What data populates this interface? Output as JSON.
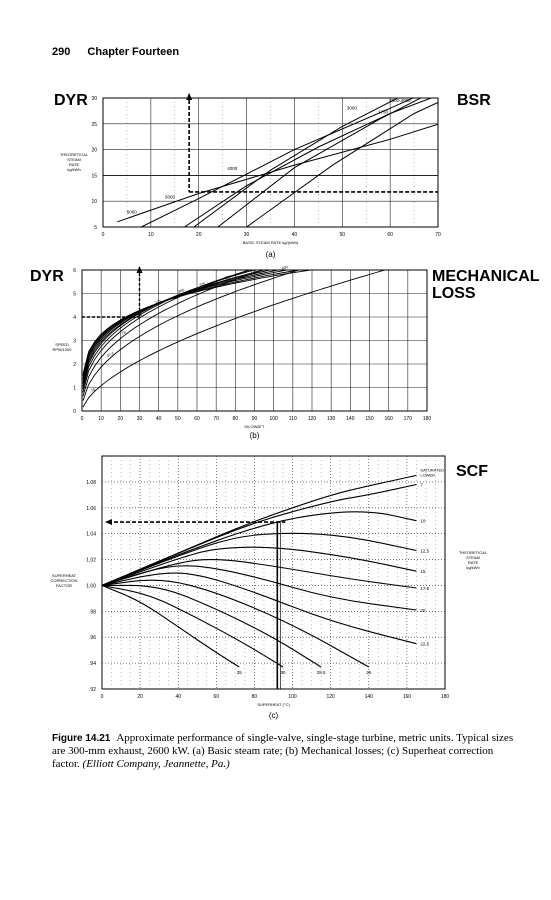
{
  "page": {
    "number": "290",
    "chapter": "Chapter Fourteen"
  },
  "tags": {
    "a_left": "DYR",
    "a_right": "BSR",
    "b_left": "DYR",
    "b_right_1": "MECHANICAL",
    "b_right_2": "LOSS",
    "c_right": "SCF"
  },
  "caption": {
    "label": "Figure 14.21",
    "text": "Approximate performance of single-valve, single-stage turbine, metric units. Typical sizes are 300-mm exhaust, 2600 kW. (a) Basic steam rate; (b) Mechanical losses; (c) Superheat correction factor.",
    "source": "(Elliott Company, Jeannette, Pa.)"
  },
  "chart_data": [
    {
      "type": "line",
      "panel": "(a)",
      "xlabel": "BASIC STEAM RATE kg/(kWh)",
      "ylabel": "THEORETICAL STEAM RATE kg/kWh",
      "xlim": [
        0,
        70
      ],
      "ylim": [
        5,
        30
      ],
      "xticks": [
        "0",
        "10",
        "20",
        "30",
        "40",
        "50",
        "60",
        "70"
      ],
      "yticks": [
        "5",
        "10",
        "15",
        "20",
        "25",
        "30"
      ],
      "series": [
        {
          "name": "6000",
          "points": [
            [
              3,
              6
            ],
            [
              20,
              11.5
            ],
            [
              40,
              17
            ],
            [
              60,
              22
            ],
            [
              72,
              25.5
            ]
          ]
        },
        {
          "name": "5000",
          "points": [
            [
              8,
              5
            ],
            [
              20,
              10.5
            ],
            [
              40,
              20
            ],
            [
              60,
              28
            ],
            [
              66,
              30.5
            ]
          ]
        },
        {
          "name": "4000",
          "points": [
            [
              17,
              5
            ],
            [
              30,
              13
            ],
            [
              45,
              20.5
            ],
            [
              60,
              27
            ],
            [
              70,
              30.5
            ]
          ]
        },
        {
          "name": "3000",
          "points": [
            [
              19,
              5
            ],
            [
              35,
              16
            ],
            [
              50,
              24.5
            ],
            [
              62,
              30.2
            ]
          ]
        },
        {
          "name": "1750",
          "points": [
            [
              24,
              5
            ],
            [
              40,
              16.5
            ],
            [
              58,
              26
            ],
            [
              67,
              30.3
            ]
          ]
        },
        {
          "name": "2000-4000",
          "points": [
            [
              30,
              5
            ],
            [
              48,
              17
            ],
            [
              65,
              27
            ],
            [
              72,
              30
            ]
          ]
        }
      ],
      "guide_lines": {
        "dashed_vertical_x": 18,
        "dashed_horizontal_y": 11.8,
        "solid_horizontal_y": 15
      }
    },
    {
      "type": "line",
      "panel": "(b)",
      "xlabel": "KILOWATT",
      "ylabel": "SPEED RPM/1000",
      "xlim": [
        0,
        180
      ],
      "ylim": [
        0,
        6
      ],
      "xticks": [
        "0",
        "10",
        "20",
        "30",
        "40",
        "50",
        "60",
        "70",
        "80",
        "90",
        "100",
        "110",
        "120",
        "130",
        "140",
        "150",
        "160",
        "170",
        "180"
      ],
      "yticks": [
        "0",
        "1",
        "2",
        "3",
        "4",
        "5",
        "6"
      ],
      "series": [
        {
          "name": "15",
          "k": 0.26,
          "exp": 0.62
        },
        {
          "name": "37.5",
          "k": 0.62,
          "exp": 0.48
        },
        {
          "name": "75",
          "k": 0.85,
          "exp": 0.43
        },
        {
          "name": "150",
          "k": 1.05,
          "exp": 0.39
        },
        {
          "name": "225",
          "k": 1.2,
          "exp": 0.36
        },
        {
          "name": "300",
          "k": 1.33,
          "exp": 0.335
        },
        {
          "name": "375",
          "k": 1.43,
          "exp": 0.315
        },
        {
          "name": "450",
          "k": 1.53,
          "exp": 0.298
        },
        {
          "name": "525",
          "k": 1.62,
          "exp": 0.283
        },
        {
          "name": "600",
          "k": 1.7,
          "exp": 0.27
        },
        {
          "name": "675",
          "k": 1.78,
          "exp": 0.257
        },
        {
          "name": "750",
          "k": 1.86,
          "exp": 0.245
        }
      ],
      "guide_lines": {
        "dashed_vertical_x": 30,
        "dashed_horizontal_y": 4
      }
    },
    {
      "type": "line",
      "panel": "(c)",
      "xlabel": "SUPERHEAT (°C)",
      "ylabel": "SUPERHEAT CORRECTION FACTOR",
      "y2label": "THEORETICAL STEAM RATE kg/kWh",
      "xlim": [
        0,
        180
      ],
      "ylim": [
        0.92,
        1.1
      ],
      "xticks": [
        "0",
        "20",
        "40",
        "60",
        "80",
        "100",
        "120",
        "140",
        "160",
        "180"
      ],
      "yticks": [
        ".92",
        ".94",
        ".96",
        ".98",
        "1.00",
        "1.02",
        "1.04",
        "1.06",
        "1.08",
        ""
      ],
      "series": [
        {
          "name": "SATURATED LOWER",
          "points": [
            [
              0,
              1.0
            ],
            [
              40,
              1.025
            ],
            [
              80,
              1.05
            ],
            [
              120,
              1.07
            ],
            [
              140,
              1.077
            ],
            [
              165,
              1.085
            ]
          ]
        },
        {
          "name": "7",
          "points": [
            [
              0,
              1.0
            ],
            [
              40,
              1.025
            ],
            [
              80,
              1.049
            ],
            [
              120,
              1.065
            ],
            [
              140,
              1.07
            ],
            [
              165,
              1.078
            ]
          ]
        },
        {
          "name": "10",
          "points": [
            [
              0,
              1.0
            ],
            [
              40,
              1.024
            ],
            [
              80,
              1.045
            ],
            [
              110,
              1.055
            ],
            [
              140,
              1.058
            ],
            [
              165,
              1.05
            ]
          ]
        },
        {
          "name": "12.5",
          "points": [
            [
              0,
              1.0
            ],
            [
              40,
              1.023
            ],
            [
              70,
              1.038
            ],
            [
              100,
              1.041
            ],
            [
              130,
              1.038
            ],
            [
              165,
              1.027
            ]
          ]
        },
        {
          "name": "15",
          "points": [
            [
              0,
              1.0
            ],
            [
              40,
              1.021
            ],
            [
              60,
              1.029
            ],
            [
              90,
              1.03
            ],
            [
              130,
              1.022
            ],
            [
              165,
              1.011
            ]
          ]
        },
        {
          "name": "17.5",
          "points": [
            [
              0,
              1.0
            ],
            [
              40,
              1.018
            ],
            [
              60,
              1.021
            ],
            [
              90,
              1.015
            ],
            [
              130,
              1.005
            ],
            [
              165,
              0.998
            ]
          ]
        },
        {
          "name": "20",
          "points": [
            [
              0,
              1.0
            ],
            [
              30,
              1.014
            ],
            [
              50,
              1.016
            ],
            [
              80,
              1.007
            ],
            [
              120,
              0.99
            ],
            [
              165,
              0.981
            ]
          ]
        },
        {
          "name": "22.5",
          "points": [
            [
              0,
              1.0
            ],
            [
              30,
              1.01
            ],
            [
              50,
              1.009
            ],
            [
              80,
              0.995
            ],
            [
              120,
              0.972
            ],
            [
              165,
              0.955
            ]
          ]
        },
        {
          "name": "25",
          "points": [
            [
              0,
              1.0
            ],
            [
              30,
              1.006
            ],
            [
              60,
              0.995
            ],
            [
              100,
              0.97
            ],
            [
              140,
              0.937
            ]
          ]
        },
        {
          "name": "28.5",
          "points": [
            [
              0,
              1.0
            ],
            [
              30,
              1.0
            ],
            [
              60,
              0.982
            ],
            [
              90,
              0.96
            ],
            [
              115,
              0.937
            ]
          ]
        },
        {
          "name": "30",
          "points": [
            [
              0,
              1.0
            ],
            [
              25,
              0.993
            ],
            [
              50,
              0.975
            ],
            [
              75,
              0.955
            ],
            [
              95,
              0.937
            ]
          ]
        },
        {
          "name": "35",
          "points": [
            [
              0,
              1.0
            ],
            [
              20,
              0.988
            ],
            [
              40,
              0.968
            ],
            [
              58,
              0.95
            ],
            [
              72,
              0.937
            ]
          ]
        }
      ],
      "guide_lines": {
        "vertical_x": 92,
        "dashed_horizontal_y": 1.049
      }
    }
  ]
}
